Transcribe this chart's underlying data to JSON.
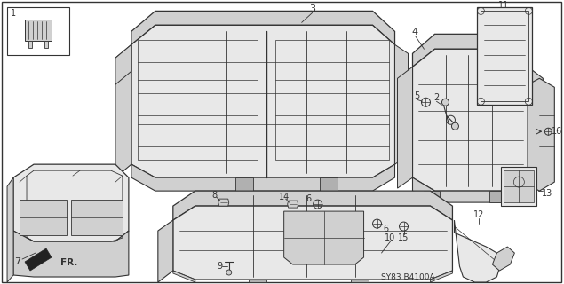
{
  "background_color": "#ffffff",
  "diagram_code": "SY83 B4100A",
  "line_color": "#333333",
  "fill_light": "#e8e8e8",
  "fill_mid": "#d0d0d0",
  "fill_dark": "#b0b0b0"
}
